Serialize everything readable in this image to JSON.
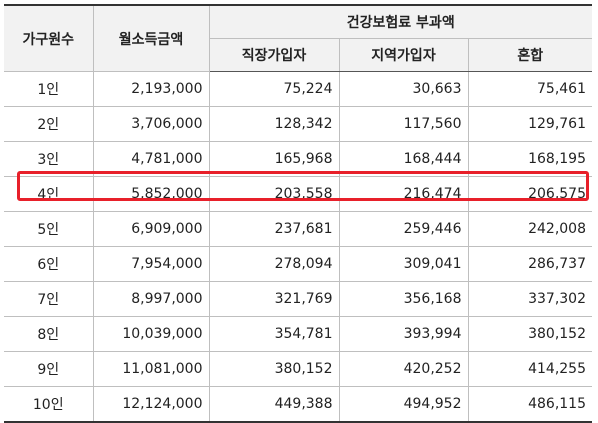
{
  "header": {
    "household": "가구원수",
    "income": "월소득금액",
    "premium_group": "건강보험료 부과액",
    "employee": "직장가입자",
    "regional": "지역가입자",
    "mixed": "혼합"
  },
  "highlight_color": "#e8202a",
  "rows": [
    {
      "household": "1인",
      "income": "2,193,000",
      "employee": "75,224",
      "regional": "30,663",
      "mixed": "75,461"
    },
    {
      "household": "2인",
      "income": "3,706,000",
      "employee": "128,342",
      "regional": "117,560",
      "mixed": "129,761"
    },
    {
      "household": "3인",
      "income": "4,781,000",
      "employee": "165,968",
      "regional": "168,444",
      "mixed": "168,195"
    },
    {
      "household": "4인",
      "income": "5,852,000",
      "employee": "203,558",
      "regional": "216,474",
      "mixed": "206,575"
    },
    {
      "household": "5인",
      "income": "6,909,000",
      "employee": "237,681",
      "regional": "259,446",
      "mixed": "242,008"
    },
    {
      "household": "6인",
      "income": "7,954,000",
      "employee": "278,094",
      "regional": "309,041",
      "mixed": "286,737"
    },
    {
      "household": "7인",
      "income": "8,997,000",
      "employee": "321,769",
      "regional": "356,168",
      "mixed": "337,302"
    },
    {
      "household": "8인",
      "income": "10,039,000",
      "employee": "354,781",
      "regional": "393,994",
      "mixed": "380,152"
    },
    {
      "household": "9인",
      "income": "11,081,000",
      "employee": "380,152",
      "regional": "420,252",
      "mixed": "414,255"
    },
    {
      "household": "10인",
      "income": "12,124,000",
      "employee": "449,388",
      "regional": "494,952",
      "mixed": "486,115"
    }
  ]
}
